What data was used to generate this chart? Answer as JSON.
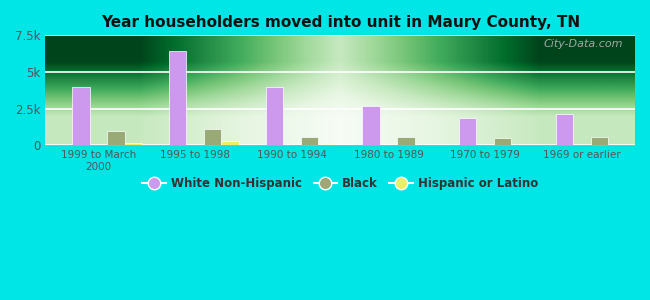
{
  "title": "Year householders moved into unit in Maury County, TN",
  "categories": [
    "1999 to March\n2000",
    "1995 to 1998",
    "1990 to 1994",
    "1980 to 1989",
    "1970 to 1979",
    "1969 or earlier"
  ],
  "white_non_hispanic": [
    4000,
    6400,
    4000,
    2700,
    1900,
    2150
  ],
  "black": [
    950,
    1100,
    550,
    600,
    500,
    550
  ],
  "hispanic_or_latino": [
    180,
    320,
    80,
    50,
    20,
    30
  ],
  "colors": {
    "white_non_hispanic": "#cc99ee",
    "black": "#99aa77",
    "hispanic_or_latino": "#eeee66"
  },
  "background_outer": "#00e5e5",
  "ylim": [
    0,
    7500
  ],
  "yticks": [
    0,
    2500,
    5000,
    7500
  ],
  "ytick_labels": [
    "0",
    "2.5k",
    "5k",
    "7.5k"
  ],
  "bar_width": 0.18,
  "legend_labels": [
    "White Non-Hispanic",
    "Black",
    "Hispanic or Latino"
  ],
  "watermark": "City-Data.com"
}
